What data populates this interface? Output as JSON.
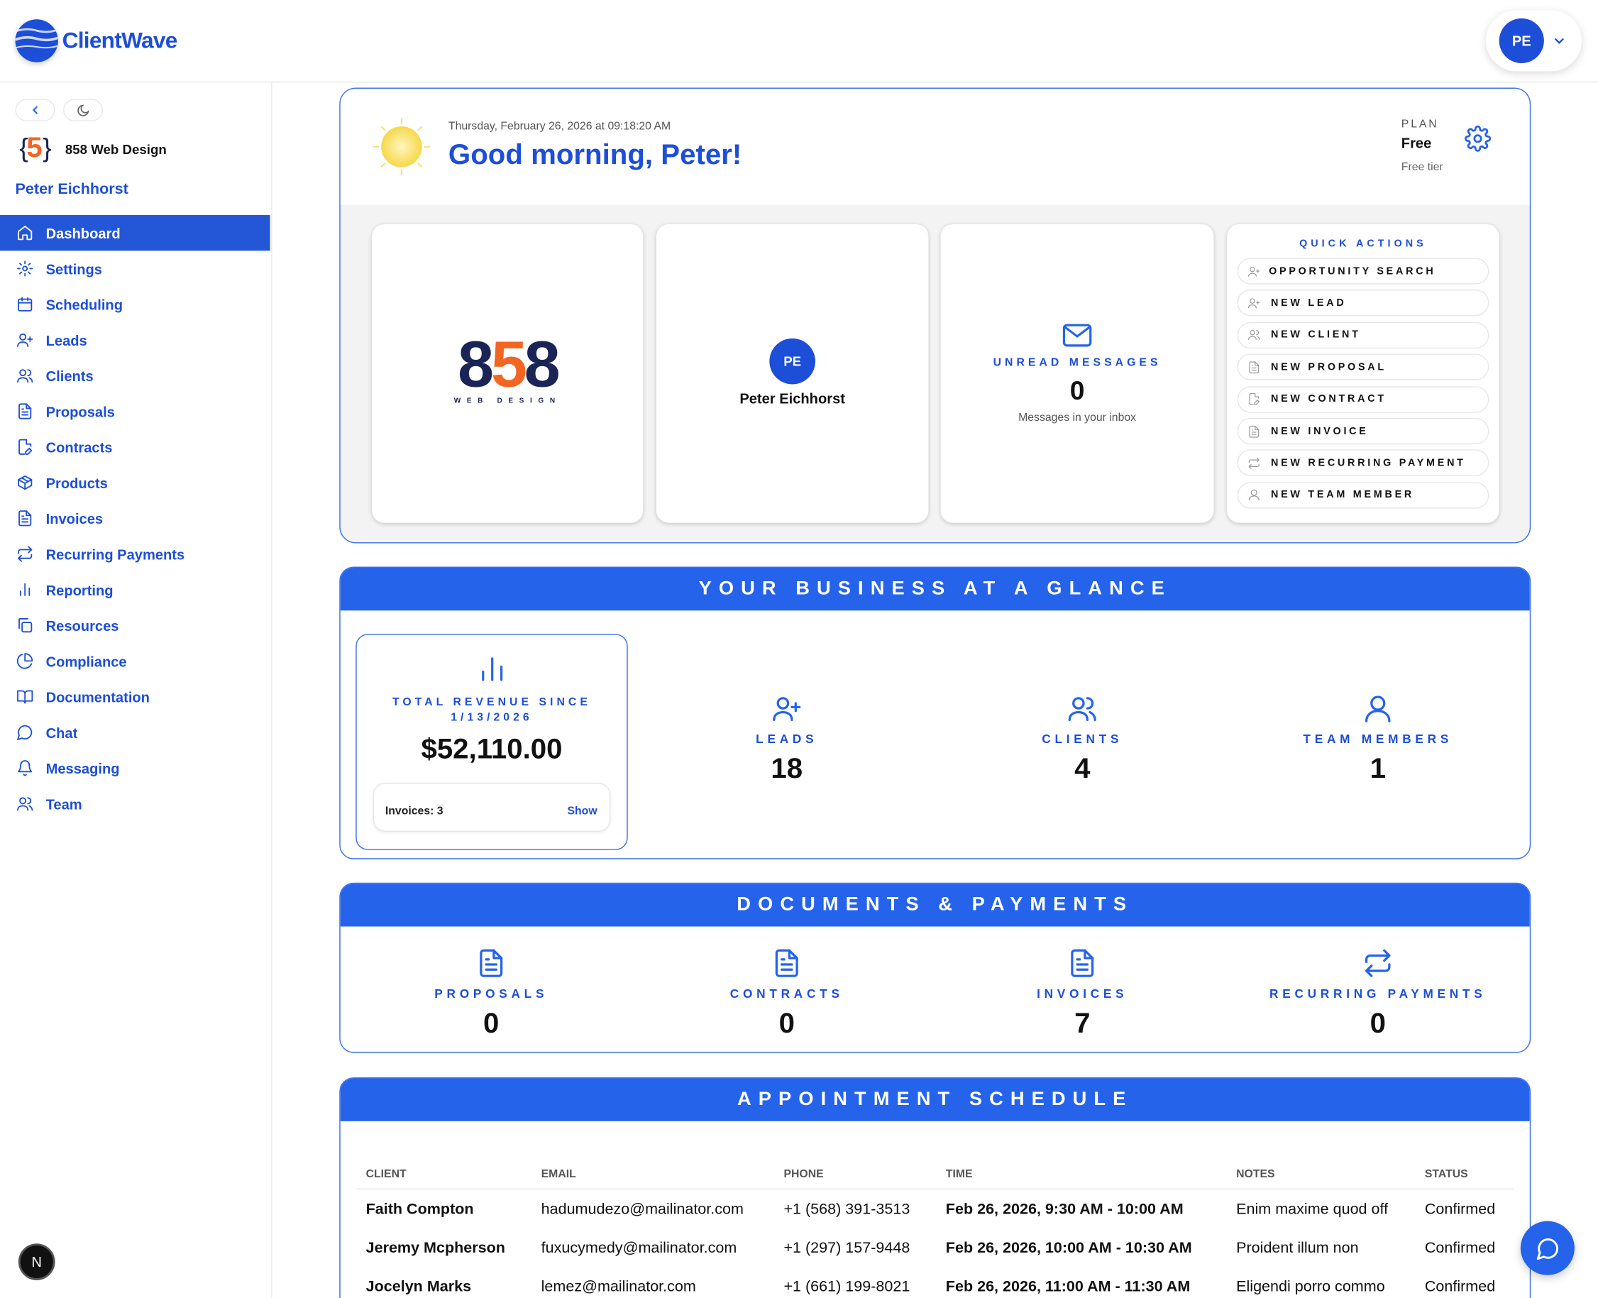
{
  "header": {
    "brand": "ClientWave",
    "user_initials": "PE"
  },
  "sidebar": {
    "company": "858 Web Design",
    "user_name": "Peter Eichhorst",
    "items": [
      {
        "label": "Dashboard",
        "icon": "home-icon",
        "active": true
      },
      {
        "label": "Settings",
        "icon": "gear-icon"
      },
      {
        "label": "Scheduling",
        "icon": "calendar-icon"
      },
      {
        "label": "Leads",
        "icon": "user-plus-icon"
      },
      {
        "label": "Clients",
        "icon": "users-icon"
      },
      {
        "label": "Proposals",
        "icon": "document-icon"
      },
      {
        "label": "Contracts",
        "icon": "document-edit-icon"
      },
      {
        "label": "Products",
        "icon": "box-icon"
      },
      {
        "label": "Invoices",
        "icon": "document-icon"
      },
      {
        "label": "Recurring Payments",
        "icon": "repeat-icon"
      },
      {
        "label": "Reporting",
        "icon": "bar-chart-icon"
      },
      {
        "label": "Resources",
        "icon": "copy-icon"
      },
      {
        "label": "Compliance",
        "icon": "pie-chart-icon"
      },
      {
        "label": "Documentation",
        "icon": "book-icon"
      },
      {
        "label": "Chat",
        "icon": "chat-icon"
      },
      {
        "label": "Messaging",
        "icon": "bell-icon"
      },
      {
        "label": "Team",
        "icon": "users-icon"
      }
    ],
    "bottom_badge": "N"
  },
  "welcome": {
    "datetime": "Thursday, February 26, 2026 at 09:18:20 AM",
    "greeting": "Good morning, Peter!",
    "plan_label": "PLAN",
    "plan_name": "Free",
    "plan_desc": "Free tier"
  },
  "company_logo": {
    "number": "858",
    "sub": "WEB DESIGN"
  },
  "profile": {
    "initials": "PE",
    "name": "Peter Eichhorst"
  },
  "messages": {
    "label": "UNREAD MESSAGES",
    "count": "0",
    "desc": "Messages in your inbox"
  },
  "quick_actions": {
    "title": "QUICK ACTIONS",
    "items": [
      "OPPORTUNITY SEARCH",
      "NEW LEAD",
      "NEW CLIENT",
      "NEW PROPOSAL",
      "NEW CONTRACT",
      "NEW INVOICE",
      "NEW RECURRING PAYMENT",
      "NEW TEAM MEMBER"
    ]
  },
  "glance": {
    "title": "YOUR BUSINESS AT A GLANCE",
    "revenue_label": "TOTAL REVENUE SINCE 1/13/2026",
    "revenue": "$52,110.00",
    "invoices": "Invoices: 3",
    "show": "Show",
    "stats": [
      {
        "label": "LEADS",
        "value": "18"
      },
      {
        "label": "CLIENTS",
        "value": "4"
      },
      {
        "label": "TEAM MEMBERS",
        "value": "1"
      }
    ]
  },
  "documents": {
    "title": "DOCUMENTS & PAYMENTS",
    "stats": [
      {
        "label": "PROPOSALS",
        "value": "0"
      },
      {
        "label": "CONTRACTS",
        "value": "0"
      },
      {
        "label": "INVOICES",
        "value": "7"
      },
      {
        "label": "RECURRING PAYMENTS",
        "value": "0"
      }
    ]
  },
  "appointments": {
    "title": "APPOINTMENT SCHEDULE",
    "columns": [
      "CLIENT",
      "EMAIL",
      "PHONE",
      "TIME",
      "NOTES",
      "STATUS"
    ],
    "rows": [
      [
        "Faith Compton",
        "hadumudezo@mailinator.com",
        "+1 (568) 391-3513",
        "Feb 26, 2026, 9:30 AM - 10:00 AM",
        "Enim maxime quod off",
        "Confirmed"
      ],
      [
        "Jeremy Mcpherson",
        "fuxucymedy@mailinator.com",
        "+1 (297) 157-9448",
        "Feb 26, 2026, 10:00 AM - 10:30 AM",
        "Proident illum non",
        "Confirmed"
      ],
      [
        "Jocelyn Marks",
        "lemez@mailinator.com",
        "+1 (661) 199-8021",
        "Feb 26, 2026, 11:00 AM - 11:30 AM",
        "Eligendi porro commo",
        "Confirmed"
      ]
    ]
  },
  "colors": {
    "primary": "#2563eb",
    "text_blue": "#1d4ed8",
    "logo_orange": "#f26522",
    "logo_navy": "#1a2456"
  }
}
